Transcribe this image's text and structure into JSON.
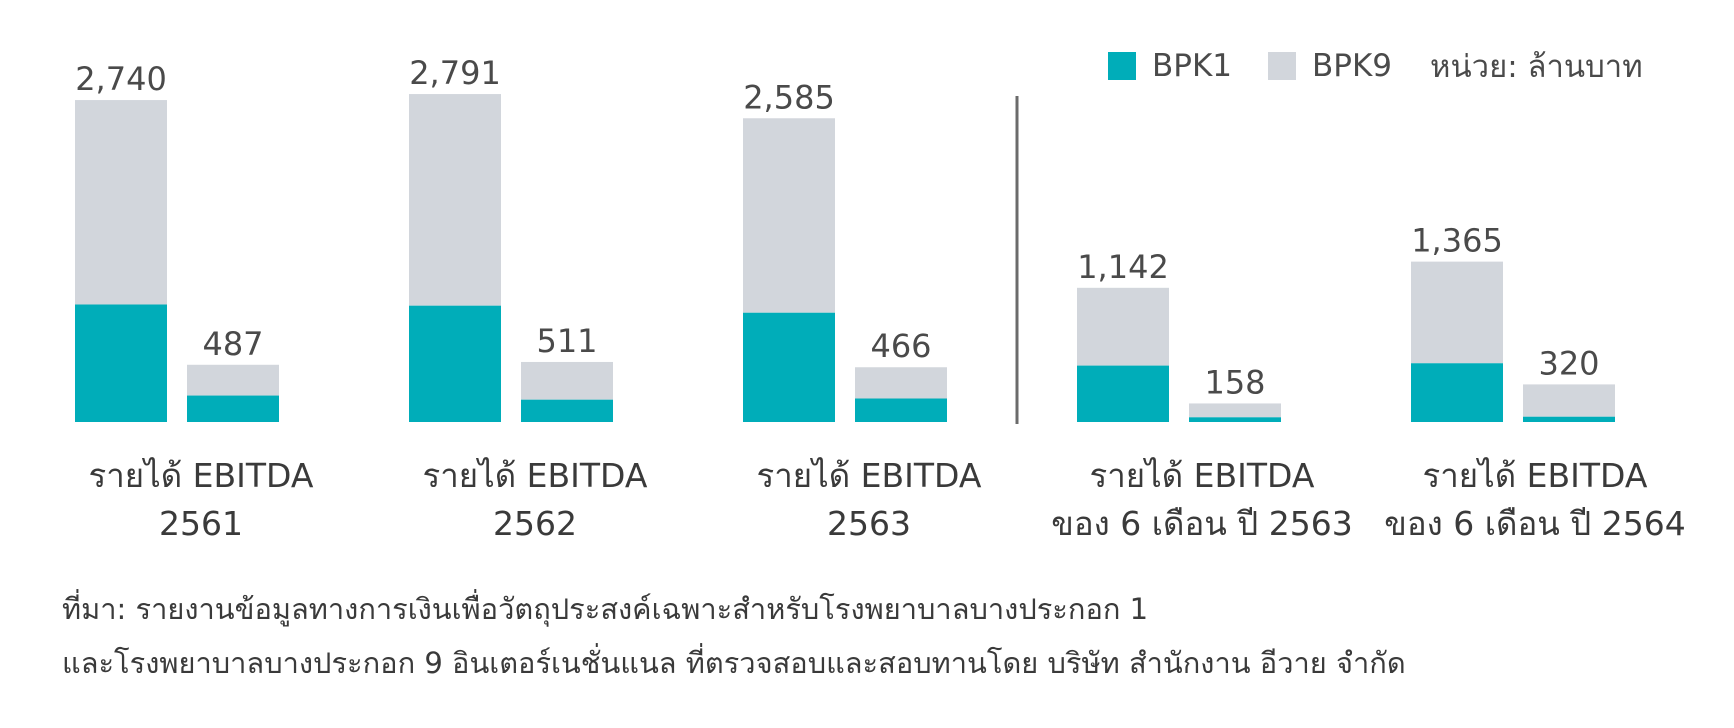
{
  "legend": {
    "bpk1_label": "BPK1",
    "bpk9_label": "BPK9",
    "unit": "หน่วย: ล้านบาท"
  },
  "colors": {
    "bpk1": "#00adb9",
    "bpk9": "#d2d6dc",
    "divider": "#6b6b6b",
    "label": "#4a4a4a"
  },
  "groups": [
    {
      "caption_line1": "รายได้ EBITDA",
      "caption_line2": "2561"
    },
    {
      "caption_line1": "รายได้ EBITDA",
      "caption_line2": "2562"
    },
    {
      "caption_line1": "รายได้ EBITDA",
      "caption_line2": "2563"
    },
    {
      "caption_line1": "รายได้ EBITDA",
      "caption_line2": "ของ 6 เดือน ปี 2563"
    },
    {
      "caption_line1": "รายได้ EBITDA",
      "caption_line2": "ของ 6 เดือน ปี 2564"
    }
  ],
  "chart_data": {
    "type": "bar",
    "stacked": true,
    "unit": "หน่วย: ล้านบาท",
    "categories": [
      "2561",
      "2562",
      "2563",
      "6M 2563",
      "6M 2564"
    ],
    "bars": [
      {
        "group": 0,
        "metric": "รายได้",
        "total": 2740,
        "bpk1": 1000,
        "bpk9": 1740,
        "label": "2,740"
      },
      {
        "group": 0,
        "metric": "EBITDA",
        "total": 487,
        "bpk1": 225,
        "bpk9": 262,
        "label": "487"
      },
      {
        "group": 1,
        "metric": "รายได้",
        "total": 2791,
        "bpk1": 990,
        "bpk9": 1801,
        "label": "2,791"
      },
      {
        "group": 1,
        "metric": "EBITDA",
        "total": 511,
        "bpk1": 190,
        "bpk9": 321,
        "label": "511"
      },
      {
        "group": 2,
        "metric": "รายได้",
        "total": 2585,
        "bpk1": 930,
        "bpk9": 1655,
        "label": "2,585"
      },
      {
        "group": 2,
        "metric": "EBITDA",
        "total": 466,
        "bpk1": 200,
        "bpk9": 266,
        "label": "466"
      },
      {
        "group": 3,
        "metric": "รายได้",
        "total": 1142,
        "bpk1": 480,
        "bpk9": 662,
        "label": "1,142"
      },
      {
        "group": 3,
        "metric": "EBITDA",
        "total": 158,
        "bpk1": 40,
        "bpk9": 118,
        "label": "158"
      },
      {
        "group": 4,
        "metric": "รายได้",
        "total": 1365,
        "bpk1": 500,
        "bpk9": 865,
        "label": "1,365"
      },
      {
        "group": 4,
        "metric": "EBITDA",
        "total": 320,
        "bpk1": 45,
        "bpk9": 275,
        "label": "320"
      }
    ],
    "legend": [
      "BPK1",
      "BPK9"
    ],
    "legend_position": "top-right",
    "divider_after_group": 2
  },
  "source": {
    "line1": "ที่มา: รายงานข้อมูลทางการเงินเพื่อวัตถุประสงค์เฉพาะสำหรับโรงพยาบาลบางประกอก 1",
    "line2": "และโรงพยาบาลบางประกอก 9 อินเตอร์เนชั่นแนล ที่ตรวจสอบและสอบทานโดย บริษัท สำนักงาน อีวาย จำกัด"
  }
}
